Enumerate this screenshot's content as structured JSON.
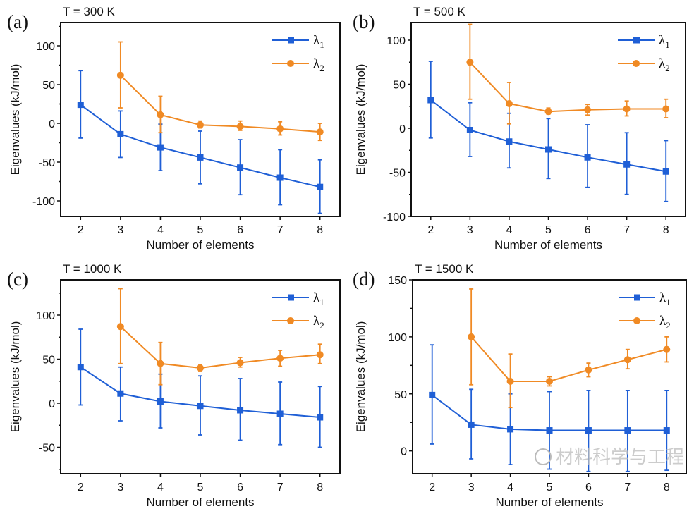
{
  "chart_data": [
    {
      "type": "line",
      "panel_label": "(a)",
      "title": "T = 300 K",
      "xlabel": "Number of elements",
      "ylabel": "Eigenvalues (kJ/mol)",
      "xlim": [
        1.5,
        8.5
      ],
      "ylim": [
        -120,
        130
      ],
      "xticks": [
        2,
        3,
        4,
        5,
        6,
        7,
        8
      ],
      "yticks": [
        -100,
        -50,
        0,
        50,
        100
      ],
      "legend_position": "top-right",
      "grid": false,
      "series": [
        {
          "name": "λ1",
          "sub": "1",
          "color": "#1f5fd6",
          "marker": "square",
          "x": [
            2,
            3,
            4,
            5,
            6,
            7,
            8
          ],
          "y": [
            24,
            -14,
            -31,
            -44,
            -57,
            -70,
            -82
          ],
          "err_low": [
            -19,
            -44,
            -61,
            -78,
            -92,
            -105,
            -116
          ],
          "err_high": [
            68,
            16,
            -1,
            -10,
            -21,
            -34,
            -47
          ]
        },
        {
          "name": "λ2",
          "sub": "2",
          "color": "#f08a24",
          "marker": "circle",
          "x": [
            3,
            4,
            5,
            6,
            7,
            8
          ],
          "y": [
            62,
            11,
            -2,
            -4,
            -7,
            -11
          ],
          "err_low": [
            20,
            -12,
            -6,
            -9,
            -15,
            -22
          ],
          "err_high": [
            105,
            35,
            3,
            3,
            2,
            0
          ]
        }
      ]
    },
    {
      "type": "line",
      "panel_label": "(b)",
      "title": "T = 500 K",
      "xlabel": "Number of elements",
      "ylabel": "Eigenvalues (kJ/mol)",
      "xlim": [
        1.5,
        8.5
      ],
      "ylim": [
        -100,
        120
      ],
      "xticks": [
        2,
        3,
        4,
        5,
        6,
        7,
        8
      ],
      "yticks": [
        -100,
        -50,
        0,
        50,
        100
      ],
      "legend_position": "top-right",
      "grid": false,
      "series": [
        {
          "name": "λ1",
          "sub": "1",
          "color": "#1f5fd6",
          "marker": "square",
          "x": [
            2,
            3,
            4,
            5,
            6,
            7,
            8
          ],
          "y": [
            32,
            -2,
            -15,
            -24,
            -33,
            -41,
            -49
          ],
          "err_low": [
            -11,
            -32,
            -45,
            -57,
            -67,
            -75,
            -83
          ],
          "err_high": [
            76,
            29,
            17,
            11,
            4,
            -5,
            -14
          ]
        },
        {
          "name": "λ2",
          "sub": "2",
          "color": "#f08a24",
          "marker": "circle",
          "x": [
            3,
            4,
            5,
            6,
            7,
            8
          ],
          "y": [
            75,
            28,
            19,
            21,
            22,
            22
          ],
          "err_low": [
            33,
            5,
            16,
            15,
            14,
            12
          ],
          "err_high": [
            118,
            52,
            23,
            27,
            31,
            33
          ]
        }
      ]
    },
    {
      "type": "line",
      "panel_label": "(c)",
      "title": "T = 1000 K",
      "xlabel": "Number of elements",
      "ylabel": "Eigenvalues (kJ/mol)",
      "xlim": [
        1.5,
        8.5
      ],
      "ylim": [
        -80,
        140
      ],
      "xticks": [
        2,
        3,
        4,
        5,
        6,
        7,
        8
      ],
      "yticks": [
        -50,
        0,
        50,
        100
      ],
      "legend_position": "top-right",
      "grid": false,
      "series": [
        {
          "name": "λ1",
          "sub": "1",
          "color": "#1f5fd6",
          "marker": "square",
          "x": [
            2,
            3,
            4,
            5,
            6,
            7,
            8
          ],
          "y": [
            41,
            11,
            2,
            -3,
            -8,
            -12,
            -16
          ],
          "err_low": [
            -2,
            -20,
            -28,
            -36,
            -42,
            -47,
            -50
          ],
          "err_high": [
            84,
            41,
            33,
            31,
            28,
            24,
            19
          ]
        },
        {
          "name": "λ2",
          "sub": "2",
          "color": "#f08a24",
          "marker": "circle",
          "x": [
            3,
            4,
            5,
            6,
            7,
            8
          ],
          "y": [
            87,
            45,
            40,
            46,
            51,
            55
          ],
          "err_low": [
            45,
            21,
            36,
            41,
            42,
            45
          ],
          "err_high": [
            130,
            69,
            44,
            52,
            60,
            67
          ]
        }
      ]
    },
    {
      "type": "line",
      "panel_label": "(d)",
      "title": "T = 1500 K",
      "xlabel": "Number of elements",
      "ylabel": "Eigenvalues (kJ/mol)",
      "xlim": [
        1.5,
        8.5
      ],
      "ylim": [
        -20,
        150
      ],
      "xticks": [
        2,
        3,
        4,
        5,
        6,
        7,
        8
      ],
      "yticks": [
        0,
        50,
        100,
        150
      ],
      "legend_position": "top-right",
      "grid": false,
      "series": [
        {
          "name": "λ1",
          "sub": "1",
          "color": "#1f5fd6",
          "marker": "square",
          "x": [
            2,
            3,
            4,
            5,
            6,
            7,
            8
          ],
          "y": [
            49,
            23,
            19,
            18,
            18,
            18,
            18
          ],
          "err_low": [
            6,
            -7,
            -12,
            -16,
            -18,
            -18,
            -17
          ],
          "err_high": [
            93,
            54,
            50,
            52,
            53,
            53,
            53
          ]
        },
        {
          "name": "λ2",
          "sub": "2",
          "color": "#f08a24",
          "marker": "circle",
          "x": [
            3,
            4,
            5,
            6,
            7,
            8
          ],
          "y": [
            100,
            61,
            61,
            71,
            80,
            89
          ],
          "err_low": [
            58,
            38,
            57,
            65,
            72,
            78
          ],
          "err_high": [
            142,
            85,
            65,
            77,
            89,
            100
          ]
        }
      ]
    }
  ],
  "watermark": "材料科学与工程"
}
